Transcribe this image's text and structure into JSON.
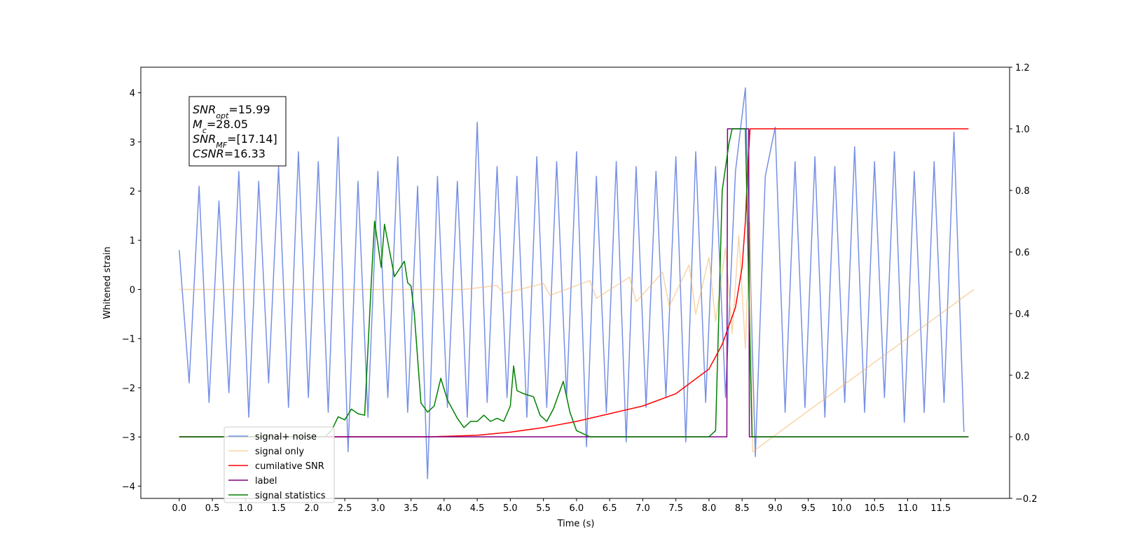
{
  "chart_data": {
    "type": "line",
    "xlabel": "Time (s)",
    "ylabel": "Whitened strain",
    "grid": false,
    "legend": "lower left",
    "xlim": [
      -0.58,
      12.54
    ],
    "ylim": [
      -4.25,
      4.52
    ],
    "y2lim": [
      -0.2,
      1.2
    ],
    "xticks": [
      {
        "value": 0,
        "label": "0.0"
      },
      0.5,
      {
        "value": 1,
        "label": "1.0"
      },
      1.5,
      {
        "value": 2,
        "label": "2.0"
      },
      2.5,
      {
        "value": 3,
        "label": "3.0"
      },
      3.5,
      {
        "value": 4,
        "label": "4.0"
      },
      4.5,
      {
        "value": 5,
        "label": "5.0"
      },
      5.5,
      {
        "value": 6,
        "label": "6.0"
      },
      6.5,
      {
        "value": 7,
        "label": "7.0"
      },
      7.5,
      {
        "value": 8,
        "label": "8.0"
      },
      8.5,
      {
        "value": 9,
        "label": "9.0"
      },
      9.5,
      {
        "value": 10,
        "label": "10.0"
      },
      10.5,
      {
        "value": 11,
        "label": "11.0"
      },
      11.5
    ],
    "yticks": [
      {
        "value": -4,
        "label": "−4"
      },
      {
        "value": -3,
        "label": "−3"
      },
      {
        "value": -2,
        "label": "−2"
      },
      {
        "value": -1,
        "label": "−1"
      },
      0,
      1,
      2,
      3,
      4
    ],
    "y2ticks": [
      {
        "value": -0.2,
        "label": "−0.2"
      },
      {
        "value": 0,
        "label": "0.0"
      },
      0.2,
      0.4,
      0.6,
      0.8,
      {
        "value": 1,
        "label": "1.0"
      },
      1.2
    ],
    "annotation": [
      {
        "main": "SNR",
        "sub": "opt",
        "rest": "=15.99"
      },
      {
        "main": "M",
        "sub": "c",
        "rest": "=28.05"
      },
      {
        "main": "SNR",
        "sub": "MF",
        "rest": "=[17.14]"
      },
      {
        "main": "CSNR",
        "sub": "",
        "rest": "=16.33"
      }
    ],
    "series": [
      {
        "name": "signal+ noise",
        "color": "#6f8ae4",
        "axis": "y",
        "x": [
          0,
          0.15,
          0.3,
          0.45,
          0.6,
          0.75,
          0.9,
          1.05,
          1.2,
          1.35,
          1.5,
          1.65,
          1.8,
          1.95,
          2.1,
          2.25,
          2.4,
          2.55,
          2.7,
          2.85,
          3,
          3.15,
          3.3,
          3.45,
          3.6,
          3.75,
          3.9,
          4.05,
          4.2,
          4.35,
          4.5,
          4.65,
          4.8,
          4.95,
          5.1,
          5.25,
          5.4,
          5.55,
          5.7,
          5.85,
          6,
          6.15,
          6.3,
          6.45,
          6.6,
          6.75,
          6.9,
          7.05,
          7.2,
          7.35,
          7.5,
          7.65,
          7.8,
          7.95,
          8.1,
          8.25,
          8.4,
          8.55,
          8.7,
          8.85,
          9,
          9.15,
          9.3,
          9.45,
          9.6,
          9.75,
          9.9,
          10.05,
          10.2,
          10.35,
          10.5,
          10.65,
          10.8,
          10.95,
          11.1,
          11.25,
          11.4,
          11.55,
          11.7,
          11.85
        ],
        "values": [
          0.8,
          -1.9,
          2.1,
          -2.3,
          1.8,
          -2.1,
          2.4,
          -2.6,
          2.2,
          -1.9,
          2.5,
          -2.4,
          2.8,
          -2.2,
          2.6,
          -2.5,
          3.1,
          -3.3,
          2.2,
          -2.6,
          2.4,
          -2.2,
          2.7,
          -2.5,
          2.1,
          -3.85,
          2.3,
          -2.4,
          2.2,
          -2.6,
          3.4,
          -2.3,
          2.5,
          -2.2,
          2.3,
          -2.6,
          2.7,
          -2.4,
          2.6,
          -2.2,
          2.8,
          -3.2,
          2.3,
          -2.5,
          2.6,
          -3.1,
          2.5,
          -2.4,
          2.4,
          -2.2,
          2.7,
          -3.1,
          2.8,
          -2.3,
          2.5,
          -2.2,
          2.4,
          4.1,
          -3.4,
          2.3,
          3.3,
          -2.5,
          2.6,
          -2.4,
          2.7,
          -2.6,
          2.5,
          -2.3,
          2.9,
          -2.5,
          2.6,
          -2.2,
          2.8,
          -2.7,
          2.4,
          -2.5,
          2.6,
          -2.3,
          3.2,
          -2.9
        ]
      },
      {
        "name": "signal only",
        "color": "#f4b35e",
        "axis": "y",
        "x": [
          0,
          4.3,
          4.8,
          4.9,
          5.5,
          5.6,
          6.2,
          6.3,
          6.8,
          6.9,
          7.3,
          7.4,
          7.7,
          7.8,
          8.0,
          8.1,
          8.25,
          8.35,
          8.45,
          8.55,
          8.62,
          8.66,
          12
        ],
        "values": [
          0,
          0,
          0.08,
          -0.08,
          0.12,
          -0.12,
          0.18,
          -0.18,
          0.25,
          -0.25,
          0.35,
          -0.35,
          0.5,
          -0.5,
          0.65,
          -0.65,
          0.85,
          -0.9,
          1.1,
          -1.2,
          1.35,
          -3.3,
          0
        ]
      },
      {
        "name": "cumilative SNR",
        "color": "#ff0000",
        "axis": "y2",
        "x": [
          0,
          3.8,
          4.5,
          5,
          5.5,
          6,
          6.5,
          7,
          7.5,
          8,
          8.2,
          8.4,
          8.5,
          8.55,
          8.58,
          8.62,
          11.92
        ],
        "values": [
          0,
          0,
          0.005,
          0.015,
          0.03,
          0.05,
          0.075,
          0.1,
          0.14,
          0.22,
          0.3,
          0.42,
          0.55,
          0.7,
          0.85,
          1.0,
          1.0
        ]
      },
      {
        "name": "label",
        "color": "#800080",
        "axis": "y2",
        "x": [
          0,
          8.27,
          8.28,
          8.6,
          8.61,
          11.92
        ],
        "values": [
          0,
          0,
          1,
          1,
          0,
          0
        ]
      },
      {
        "name": "signal statistics",
        "color": "#008000",
        "axis": "y2",
        "x": [
          0,
          2.2,
          2.3,
          2.4,
          2.5,
          2.6,
          2.7,
          2.8,
          2.9,
          2.95,
          3.05,
          3.1,
          3.25,
          3.4,
          3.45,
          3.5,
          3.55,
          3.65,
          3.75,
          3.85,
          3.95,
          4.05,
          4.2,
          4.3,
          4.4,
          4.5,
          4.6,
          4.7,
          4.8,
          4.9,
          5.0,
          5.05,
          5.1,
          5.2,
          5.35,
          5.45,
          5.55,
          5.65,
          5.8,
          5.9,
          6.0,
          6.2,
          8.0,
          8.1,
          8.2,
          8.3,
          8.35,
          8.55,
          8.65,
          11.92
        ],
        "values": [
          0,
          0,
          0.02,
          0.065,
          0.055,
          0.09,
          0.075,
          0.07,
          0.5,
          0.7,
          0.55,
          0.69,
          0.52,
          0.57,
          0.5,
          0.49,
          0.4,
          0.11,
          0.08,
          0.1,
          0.19,
          0.12,
          0.06,
          0.03,
          0.05,
          0.05,
          0.07,
          0.05,
          0.06,
          0.05,
          0.1,
          0.23,
          0.15,
          0.14,
          0.13,
          0.07,
          0.05,
          0.09,
          0.18,
          0.08,
          0.02,
          0,
          0,
          0.02,
          0.8,
          0.95,
          1.0,
          1.0,
          0,
          0
        ]
      }
    ]
  }
}
